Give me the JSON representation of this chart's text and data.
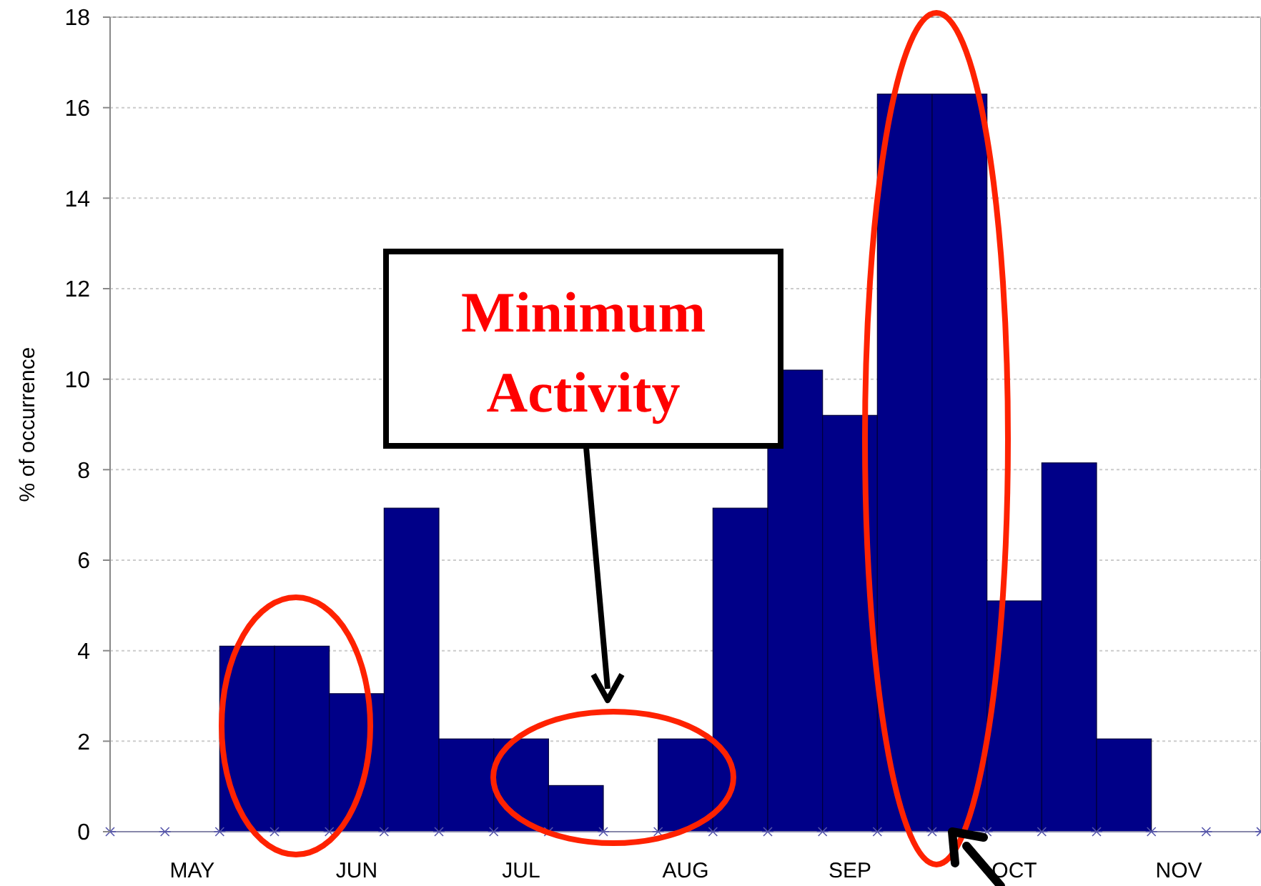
{
  "chart_data": {
    "type": "bar",
    "categories": [
      null,
      "MAY",
      null,
      null,
      "JUN",
      null,
      null,
      "JUL",
      null,
      null,
      "AUG",
      null,
      null,
      "SEP",
      null,
      null,
      "OCT",
      null,
      null,
      "NOV",
      null
    ],
    "values": [
      null,
      null,
      4.1,
      4.1,
      3.05,
      7.15,
      2.05,
      2.05,
      1.02,
      0,
      2.05,
      7.15,
      10.2,
      9.2,
      16.3,
      16.3,
      5.1,
      8.15,
      2.05,
      null,
      null
    ],
    "color": "#000088",
    "ylabel": "% of occurrence",
    "ylim": [
      0,
      18
    ],
    "yticks": [
      0,
      2,
      4,
      6,
      8,
      10,
      12,
      14,
      16,
      18
    ],
    "grid": "y",
    "annotations": [
      "Minimum Activity"
    ]
  }
}
